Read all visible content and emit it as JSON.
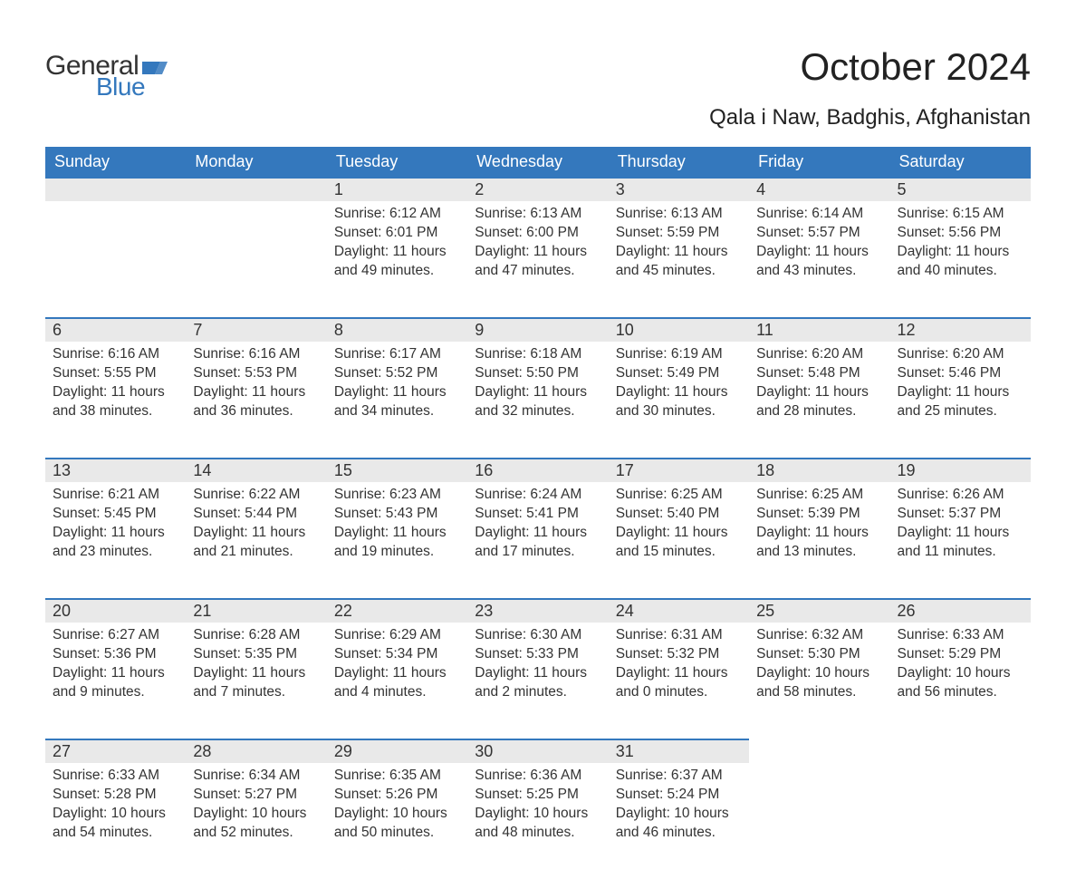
{
  "logo": {
    "text_general": "General",
    "text_blue": "Blue",
    "flag_color": "#3478bd",
    "general_color": "#333333",
    "blue_color": "#3478bd"
  },
  "header": {
    "month_title": "October 2024",
    "location": "Qala i Naw, Badghis, Afghanistan"
  },
  "styling": {
    "header_bg": "#3478bd",
    "header_text": "#ffffff",
    "daynum_bg": "#e9e9e9",
    "daynum_border": "#3478bd",
    "body_text": "#333333",
    "page_bg": "#ffffff",
    "month_title_fontsize": 42,
    "location_fontsize": 24,
    "weekday_fontsize": 18,
    "daynum_fontsize": 18,
    "cell_fontsize": 15.5
  },
  "calendar": {
    "type": "table",
    "weekdays": [
      "Sunday",
      "Monday",
      "Tuesday",
      "Wednesday",
      "Thursday",
      "Friday",
      "Saturday"
    ],
    "weeks": [
      [
        null,
        null,
        {
          "n": "1",
          "sunrise": "Sunrise: 6:12 AM",
          "sunset": "Sunset: 6:01 PM",
          "dl1": "Daylight: 11 hours",
          "dl2": "and 49 minutes."
        },
        {
          "n": "2",
          "sunrise": "Sunrise: 6:13 AM",
          "sunset": "Sunset: 6:00 PM",
          "dl1": "Daylight: 11 hours",
          "dl2": "and 47 minutes."
        },
        {
          "n": "3",
          "sunrise": "Sunrise: 6:13 AM",
          "sunset": "Sunset: 5:59 PM",
          "dl1": "Daylight: 11 hours",
          "dl2": "and 45 minutes."
        },
        {
          "n": "4",
          "sunrise": "Sunrise: 6:14 AM",
          "sunset": "Sunset: 5:57 PM",
          "dl1": "Daylight: 11 hours",
          "dl2": "and 43 minutes."
        },
        {
          "n": "5",
          "sunrise": "Sunrise: 6:15 AM",
          "sunset": "Sunset: 5:56 PM",
          "dl1": "Daylight: 11 hours",
          "dl2": "and 40 minutes."
        }
      ],
      [
        {
          "n": "6",
          "sunrise": "Sunrise: 6:16 AM",
          "sunset": "Sunset: 5:55 PM",
          "dl1": "Daylight: 11 hours",
          "dl2": "and 38 minutes."
        },
        {
          "n": "7",
          "sunrise": "Sunrise: 6:16 AM",
          "sunset": "Sunset: 5:53 PM",
          "dl1": "Daylight: 11 hours",
          "dl2": "and 36 minutes."
        },
        {
          "n": "8",
          "sunrise": "Sunrise: 6:17 AM",
          "sunset": "Sunset: 5:52 PM",
          "dl1": "Daylight: 11 hours",
          "dl2": "and 34 minutes."
        },
        {
          "n": "9",
          "sunrise": "Sunrise: 6:18 AM",
          "sunset": "Sunset: 5:50 PM",
          "dl1": "Daylight: 11 hours",
          "dl2": "and 32 minutes."
        },
        {
          "n": "10",
          "sunrise": "Sunrise: 6:19 AM",
          "sunset": "Sunset: 5:49 PM",
          "dl1": "Daylight: 11 hours",
          "dl2": "and 30 minutes."
        },
        {
          "n": "11",
          "sunrise": "Sunrise: 6:20 AM",
          "sunset": "Sunset: 5:48 PM",
          "dl1": "Daylight: 11 hours",
          "dl2": "and 28 minutes."
        },
        {
          "n": "12",
          "sunrise": "Sunrise: 6:20 AM",
          "sunset": "Sunset: 5:46 PM",
          "dl1": "Daylight: 11 hours",
          "dl2": "and 25 minutes."
        }
      ],
      [
        {
          "n": "13",
          "sunrise": "Sunrise: 6:21 AM",
          "sunset": "Sunset: 5:45 PM",
          "dl1": "Daylight: 11 hours",
          "dl2": "and 23 minutes."
        },
        {
          "n": "14",
          "sunrise": "Sunrise: 6:22 AM",
          "sunset": "Sunset: 5:44 PM",
          "dl1": "Daylight: 11 hours",
          "dl2": "and 21 minutes."
        },
        {
          "n": "15",
          "sunrise": "Sunrise: 6:23 AM",
          "sunset": "Sunset: 5:43 PM",
          "dl1": "Daylight: 11 hours",
          "dl2": "and 19 minutes."
        },
        {
          "n": "16",
          "sunrise": "Sunrise: 6:24 AM",
          "sunset": "Sunset: 5:41 PM",
          "dl1": "Daylight: 11 hours",
          "dl2": "and 17 minutes."
        },
        {
          "n": "17",
          "sunrise": "Sunrise: 6:25 AM",
          "sunset": "Sunset: 5:40 PM",
          "dl1": "Daylight: 11 hours",
          "dl2": "and 15 minutes."
        },
        {
          "n": "18",
          "sunrise": "Sunrise: 6:25 AM",
          "sunset": "Sunset: 5:39 PM",
          "dl1": "Daylight: 11 hours",
          "dl2": "and 13 minutes."
        },
        {
          "n": "19",
          "sunrise": "Sunrise: 6:26 AM",
          "sunset": "Sunset: 5:37 PM",
          "dl1": "Daylight: 11 hours",
          "dl2": "and 11 minutes."
        }
      ],
      [
        {
          "n": "20",
          "sunrise": "Sunrise: 6:27 AM",
          "sunset": "Sunset: 5:36 PM",
          "dl1": "Daylight: 11 hours",
          "dl2": "and 9 minutes."
        },
        {
          "n": "21",
          "sunrise": "Sunrise: 6:28 AM",
          "sunset": "Sunset: 5:35 PM",
          "dl1": "Daylight: 11 hours",
          "dl2": "and 7 minutes."
        },
        {
          "n": "22",
          "sunrise": "Sunrise: 6:29 AM",
          "sunset": "Sunset: 5:34 PM",
          "dl1": "Daylight: 11 hours",
          "dl2": "and 4 minutes."
        },
        {
          "n": "23",
          "sunrise": "Sunrise: 6:30 AM",
          "sunset": "Sunset: 5:33 PM",
          "dl1": "Daylight: 11 hours",
          "dl2": "and 2 minutes."
        },
        {
          "n": "24",
          "sunrise": "Sunrise: 6:31 AM",
          "sunset": "Sunset: 5:32 PM",
          "dl1": "Daylight: 11 hours",
          "dl2": "and 0 minutes."
        },
        {
          "n": "25",
          "sunrise": "Sunrise: 6:32 AM",
          "sunset": "Sunset: 5:30 PM",
          "dl1": "Daylight: 10 hours",
          "dl2": "and 58 minutes."
        },
        {
          "n": "26",
          "sunrise": "Sunrise: 6:33 AM",
          "sunset": "Sunset: 5:29 PM",
          "dl1": "Daylight: 10 hours",
          "dl2": "and 56 minutes."
        }
      ],
      [
        {
          "n": "27",
          "sunrise": "Sunrise: 6:33 AM",
          "sunset": "Sunset: 5:28 PM",
          "dl1": "Daylight: 10 hours",
          "dl2": "and 54 minutes."
        },
        {
          "n": "28",
          "sunrise": "Sunrise: 6:34 AM",
          "sunset": "Sunset: 5:27 PM",
          "dl1": "Daylight: 10 hours",
          "dl2": "and 52 minutes."
        },
        {
          "n": "29",
          "sunrise": "Sunrise: 6:35 AM",
          "sunset": "Sunset: 5:26 PM",
          "dl1": "Daylight: 10 hours",
          "dl2": "and 50 minutes."
        },
        {
          "n": "30",
          "sunrise": "Sunrise: 6:36 AM",
          "sunset": "Sunset: 5:25 PM",
          "dl1": "Daylight: 10 hours",
          "dl2": "and 48 minutes."
        },
        {
          "n": "31",
          "sunrise": "Sunrise: 6:37 AM",
          "sunset": "Sunset: 5:24 PM",
          "dl1": "Daylight: 10 hours",
          "dl2": "and 46 minutes."
        },
        null,
        null
      ]
    ]
  }
}
